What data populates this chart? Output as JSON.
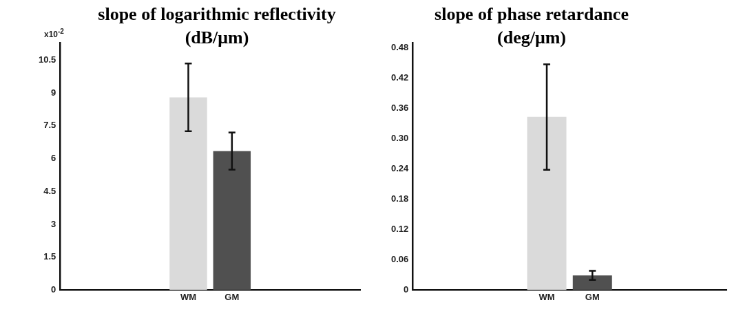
{
  "chart_data": [
    {
      "type": "bar",
      "title": "slope of logarithmic reflectivity (dB/μm)",
      "categories": [
        "WM",
        "GM"
      ],
      "values": [
        8.8,
        6.35
      ],
      "colors": [
        "#dadada",
        "#505050"
      ],
      "errors": [
        [
          7.25,
          10.35
        ],
        [
          5.5,
          7.2
        ]
      ],
      "ylim": [
        0,
        11.3
      ],
      "yticks": [
        0,
        1.5,
        3,
        4.5,
        6,
        7.5,
        9,
        10.5
      ],
      "annotations": [
        "x10$^{-2}$"
      ],
      "grid": false
    },
    {
      "type": "bar",
      "title": "slope of phase retardance (deg/μm)",
      "categories": [
        "WM",
        "GM"
      ],
      "values": [
        0.343,
        0.029
      ],
      "colors": [
        "#dadada",
        "#505050"
      ],
      "errors": [
        [
          0.238,
          0.447
        ],
        [
          0.02,
          0.038
        ]
      ],
      "ylim": [
        0,
        0.49
      ],
      "yticks": [
        0,
        0.06,
        0.12,
        0.18,
        0.24,
        {
          "value": 0.3,
          "label": "0.30"
        },
        0.36,
        0.42,
        0.48
      ],
      "grid": false
    }
  ]
}
